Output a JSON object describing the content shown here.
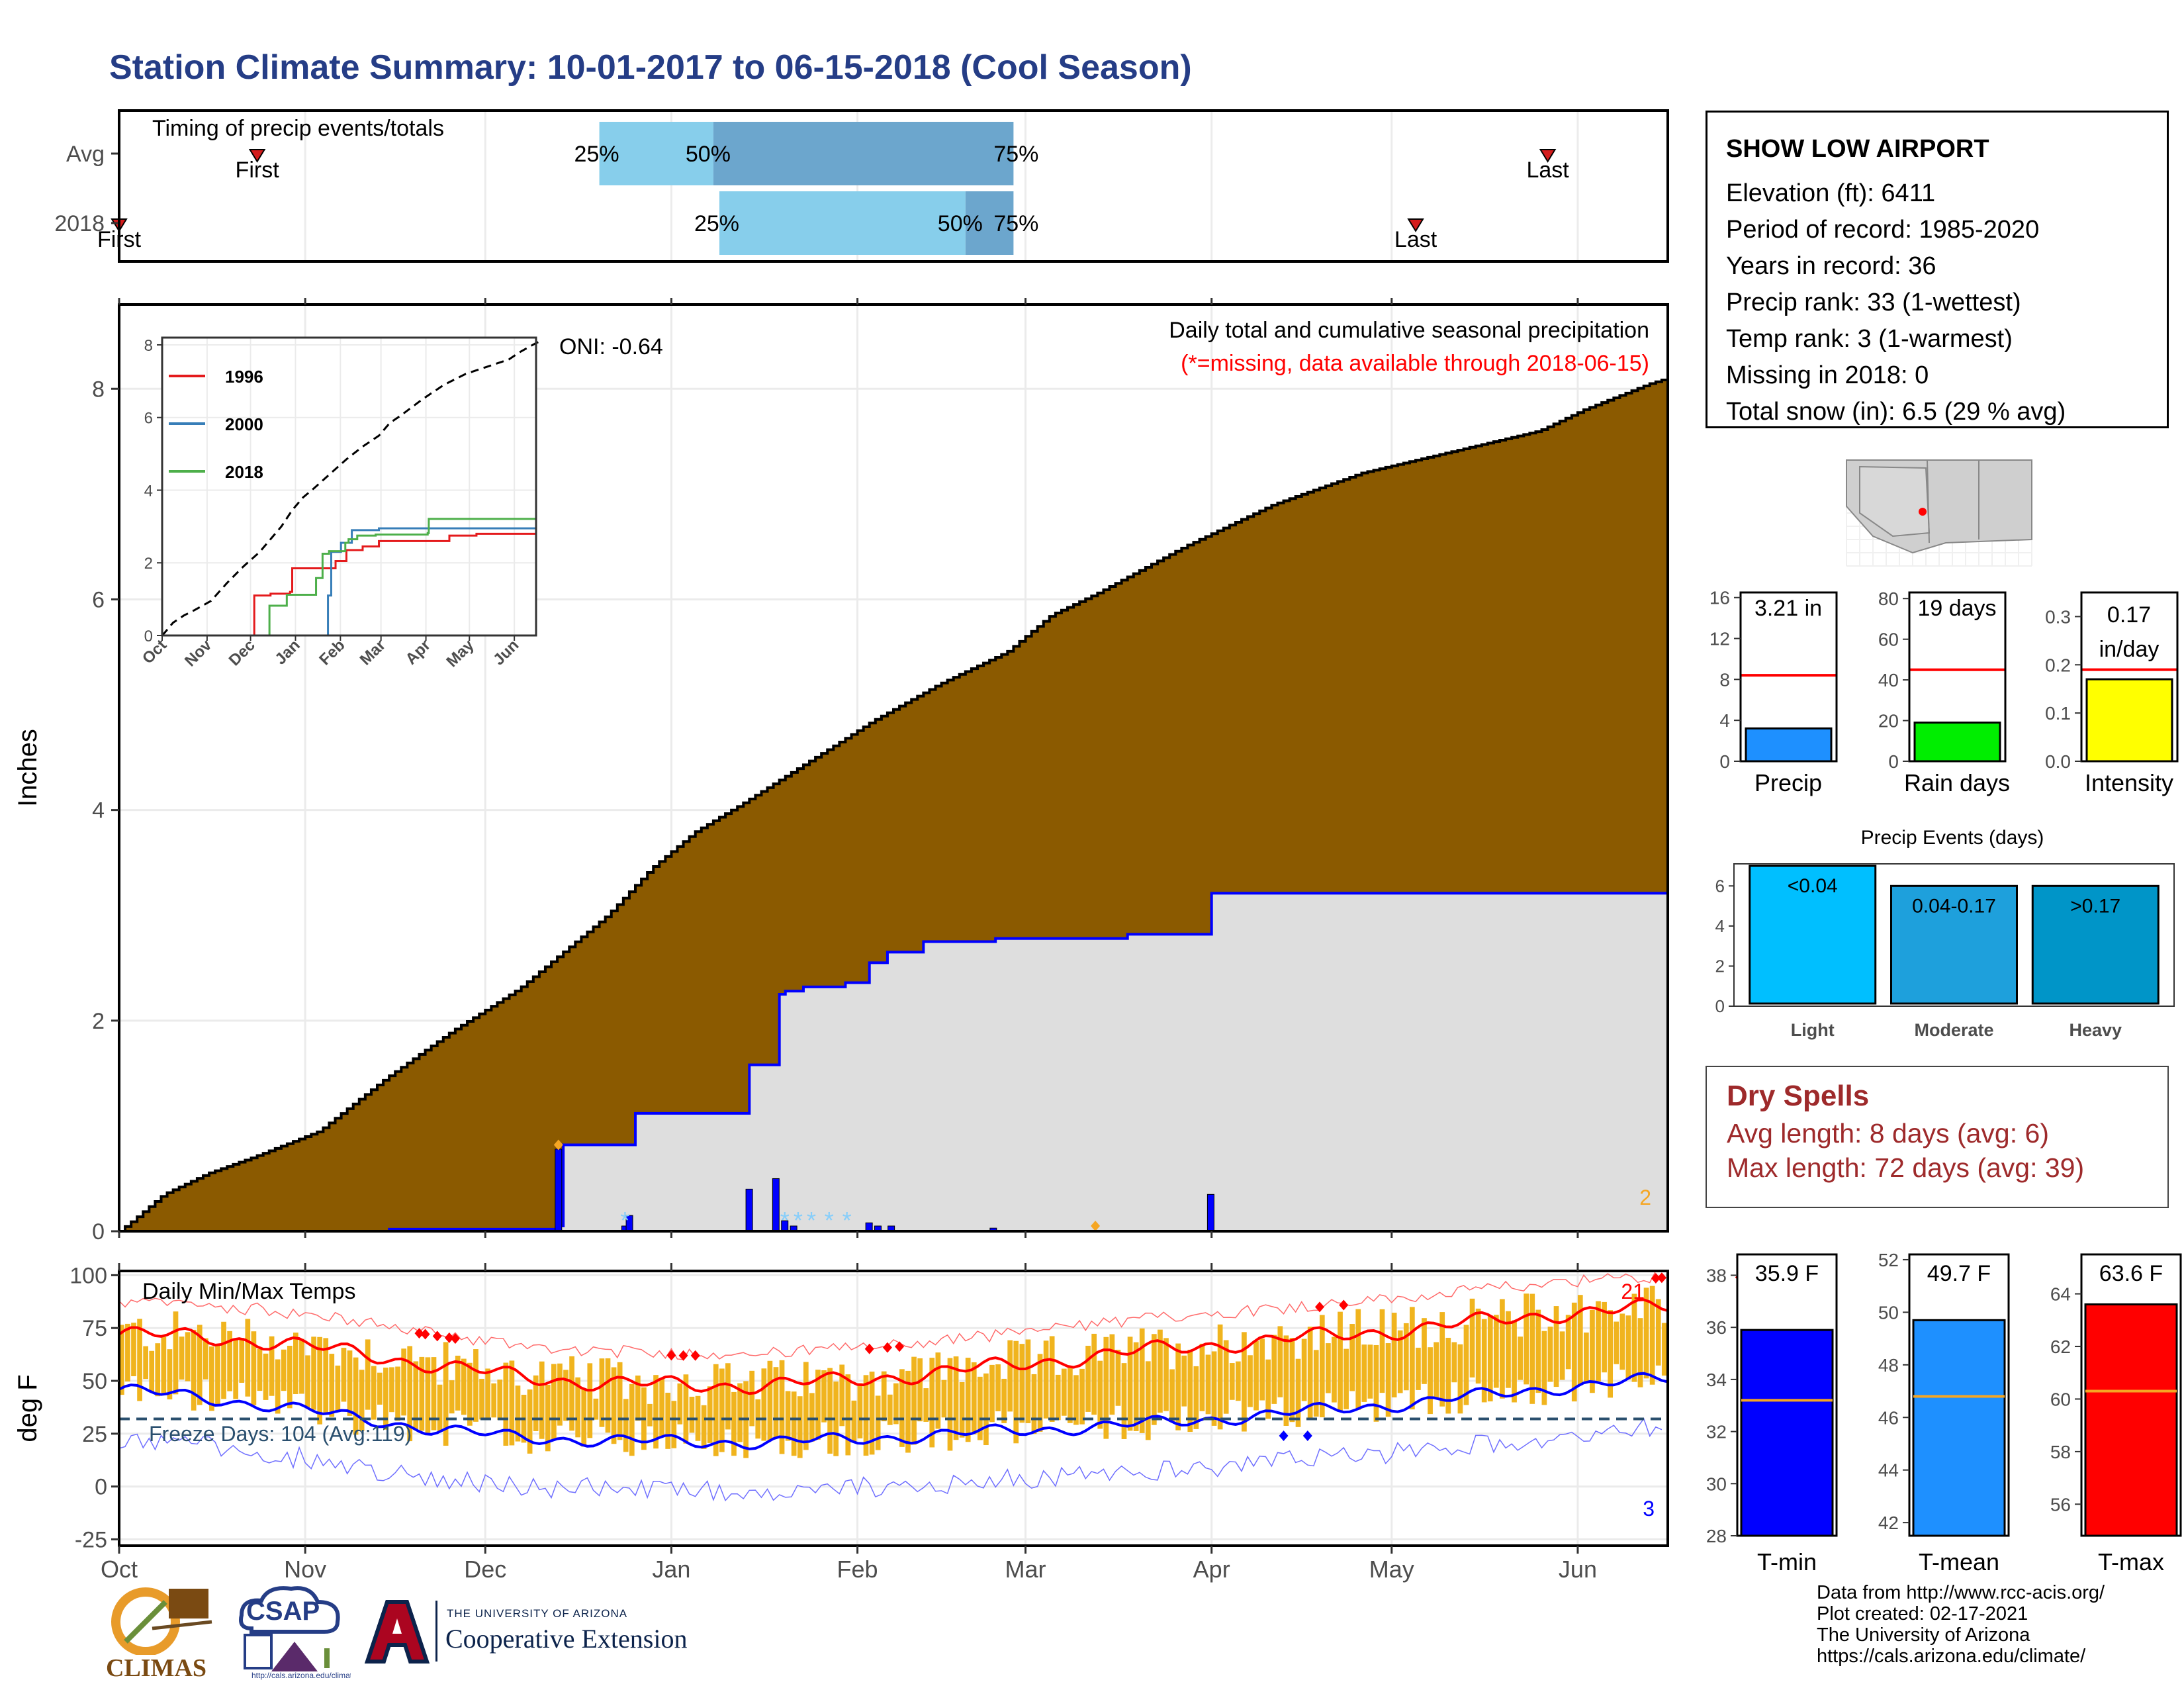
{
  "title": "Station Climate Summary: 10-01-2017 to 06-15-2018 (Cool Season)",
  "colors": {
    "title": "#253d86",
    "cum_fill": "#8b5a00",
    "cur_fill": "#dedede",
    "cur_line": "#0000ff",
    "temp_bar": "#f0b41e",
    "tmax_line": "#ff0000",
    "tmin_line": "#0000ff",
    "light": "#00bfff",
    "moderate": "#1ea0dc",
    "heavy": "#0095c8",
    "dry": "#9e2a2b"
  },
  "station": {
    "name": "SHOW LOW AIRPORT",
    "lines": [
      "Elevation (ft): 6411",
      "Period of record: 1985-2020",
      "Years in record: 36",
      "Precip rank: 33 (1-wettest)",
      "Temp rank: 3 (1-warmest)",
      "Missing in 2018: 0",
      "Total snow (in): 6.5 (29 % avg)"
    ]
  },
  "dry_spells": {
    "title": "Dry Spells",
    "avg": "Avg length: 8 days (avg: 6)",
    "max": "Max length: 72 days (avg: 39)"
  },
  "credits": [
    "Data from http://www.rcc-acis.org/",
    "Plot created: 02-17-2021",
    "The University of Arizona",
    "https://cals.arizona.edu/climate/"
  ],
  "logos": {
    "climas": "CLIMAS",
    "csap": "CSAP",
    "csap_url": "http://cals.arizona.edu/climate",
    "ua_small": "THE UNIVERSITY OF ARIZONA",
    "ua_big": "Cooperative Extension"
  },
  "chart_data": [
    {
      "id": "timing",
      "type": "bar",
      "title": "Timing of precip events/totals",
      "rows": [
        {
          "label": "Avg",
          "first": "Oct 24",
          "p25": "Dec 20",
          "p50": "Jan 8",
          "p75": "Feb 27",
          "last": "May 27"
        },
        {
          "label": "2018",
          "first": "Oct 1",
          "p25": "Jan 9",
          "p50": "Feb 19",
          "p75": "Feb 27",
          "last": "May 5"
        }
      ],
      "labels": {
        "first": "First",
        "last": "Last",
        "p25": "25%",
        "p50": "50%",
        "p75": "75%"
      }
    },
    {
      "id": "precip",
      "type": "area",
      "ylabel": "Inches",
      "annotation": "Daily total and cumulative seasonal precipitation",
      "missing_note": "(*=missing, data available through 2018-06-15)",
      "oni": "ONI: -0.64",
      "corner_count": "2",
      "ylim": [
        0,
        8.8
      ],
      "yticks": [
        0,
        2,
        4,
        6,
        8
      ],
      "xticks": [
        "Oct",
        "Nov",
        "Dec",
        "Jan",
        "Feb",
        "Mar",
        "Apr",
        "May",
        "Jun"
      ],
      "cum_avg": [
        [
          0,
          0
        ],
        [
          3,
          0.1
        ],
        [
          10,
          0.35
        ],
        [
          20,
          0.55
        ],
        [
          30,
          0.7
        ],
        [
          45,
          0.95
        ],
        [
          60,
          1.45
        ],
        [
          75,
          1.9
        ],
        [
          90,
          2.3
        ],
        [
          100,
          2.65
        ],
        [
          110,
          3.0
        ],
        [
          120,
          3.45
        ],
        [
          130,
          3.8
        ],
        [
          140,
          4.05
        ],
        [
          155,
          4.45
        ],
        [
          170,
          4.85
        ],
        [
          185,
          5.2
        ],
        [
          200,
          5.5
        ],
        [
          210,
          5.85
        ],
        [
          220,
          6.05
        ],
        [
          240,
          6.5
        ],
        [
          260,
          6.9
        ],
        [
          280,
          7.2
        ],
        [
          300,
          7.4
        ],
        [
          320,
          7.6
        ],
        [
          330,
          7.8
        ],
        [
          345,
          8.05
        ],
        [
          349,
          8.1
        ]
      ],
      "cum_2018": [
        [
          0,
          0
        ],
        [
          30,
          0
        ],
        [
          60,
          0.02
        ],
        [
          98,
          0.05
        ],
        [
          99,
          0.82
        ],
        [
          114,
          0.82
        ],
        [
          115,
          1.12
        ],
        [
          141,
          1.12
        ],
        [
          142,
          1.58
        ],
        [
          147,
          1.58
        ],
        [
          148,
          2.25
        ],
        [
          150,
          2.28
        ],
        [
          154,
          2.32
        ],
        [
          163,
          2.36
        ],
        [
          169,
          2.55
        ],
        [
          172,
          2.65
        ],
        [
          180,
          2.75
        ],
        [
          197,
          2.78
        ],
        [
          227,
          2.82
        ],
        [
          245,
          2.82
        ],
        [
          246,
          3.21
        ],
        [
          349,
          3.21
        ]
      ],
      "daily_bars": [
        [
          99,
          0.78
        ],
        [
          114,
          0.05
        ],
        [
          115,
          0.15
        ],
        [
          142,
          0.4
        ],
        [
          148,
          0.5
        ],
        [
          150,
          0.1
        ],
        [
          152,
          0.05
        ],
        [
          169,
          0.08
        ],
        [
          171,
          0.05
        ],
        [
          174,
          0.05
        ],
        [
          197,
          0.03
        ],
        [
          246,
          0.35
        ]
      ],
      "snow_marks": [
        114,
        150,
        153,
        156,
        160,
        164
      ],
      "inset": {
        "type": "line",
        "ylim": [
          0,
          8
        ],
        "yticks": [
          0,
          2,
          4,
          6,
          8
        ],
        "xticks": [
          "Oct",
          "Nov",
          "Dec",
          "Jan",
          "Feb",
          "Mar",
          "Apr",
          "May",
          "Jun"
        ],
        "series": [
          {
            "name": "1996",
            "color": "#e41a1c",
            "values": [
              [
                0,
                0
              ],
              [
                80,
                0
              ],
              [
                85,
                1.1
              ],
              [
                100,
                1.15
              ],
              [
                118,
                1.2
              ],
              [
                120,
                1.85
              ],
              [
                145,
                1.85
              ],
              [
                160,
                2.05
              ],
              [
                170,
                2.35
              ],
              [
                185,
                2.45
              ],
              [
                200,
                2.6
              ],
              [
                265,
                2.75
              ],
              [
                290,
                2.8
              ],
              [
                345,
                2.8
              ]
            ]
          },
          {
            "name": "2000",
            "color": "#377eb8",
            "values": [
              [
                0,
                0
              ],
              [
                150,
                0
              ],
              [
                153,
                1.1
              ],
              [
                156,
                2.3
              ],
              [
                165,
                2.55
              ],
              [
                175,
                2.9
              ],
              [
                200,
                2.95
              ],
              [
                345,
                2.95
              ]
            ]
          },
          {
            "name": "2018",
            "color": "#4daf4a",
            "values": [
              [
                0,
                0
              ],
              [
                98,
                0
              ],
              [
                99,
                0.82
              ],
              [
                115,
                1.12
              ],
              [
                142,
                1.58
              ],
              [
                148,
                2.25
              ],
              [
                154,
                2.32
              ],
              [
                169,
                2.55
              ],
              [
                172,
                2.65
              ],
              [
                180,
                2.75
              ],
              [
                197,
                2.78
              ],
              [
                245,
                2.82
              ],
              [
                246,
                3.21
              ],
              [
                345,
                3.21
              ]
            ]
          }
        ]
      }
    },
    {
      "id": "temps",
      "type": "bar",
      "title": "Daily Min/Max Temps",
      "ylabel": "deg F",
      "ylim": [
        -28,
        102
      ],
      "yticks": [
        -25,
        0,
        25,
        50,
        75,
        100
      ],
      "xticks": [
        "Oct",
        "Nov",
        "Dec",
        "Jan",
        "Feb",
        "Mar",
        "Apr",
        "May",
        "Jun"
      ],
      "freeze_text": "Freeze Days: 104 (Avg:119)",
      "freeze_line": 32,
      "max_records": "21",
      "min_records": "3",
      "avg_tmax": [
        [
          0,
          72
        ],
        [
          15,
          71
        ],
        [
          30,
          68
        ],
        [
          45,
          63
        ],
        [
          60,
          57
        ],
        [
          75,
          52
        ],
        [
          90,
          49
        ],
        [
          105,
          48
        ],
        [
          120,
          48
        ],
        [
          135,
          50
        ],
        [
          150,
          53
        ],
        [
          165,
          57
        ],
        [
          180,
          61
        ],
        [
          195,
          65
        ],
        [
          210,
          68
        ],
        [
          225,
          71
        ],
        [
          240,
          74
        ],
        [
          255,
          78
        ],
        [
          270,
          82
        ],
        [
          285,
          84
        ],
        [
          290,
          85
        ]
      ],
      "avg_tmin": [
        [
          0,
          46
        ],
        [
          15,
          42
        ],
        [
          30,
          38
        ],
        [
          45,
          32
        ],
        [
          60,
          27
        ],
        [
          75,
          23
        ],
        [
          90,
          22
        ],
        [
          105,
          21
        ],
        [
          120,
          21
        ],
        [
          135,
          22
        ],
        [
          150,
          24
        ],
        [
          165,
          26
        ],
        [
          180,
          28
        ],
        [
          195,
          30
        ],
        [
          210,
          33
        ],
        [
          225,
          36
        ],
        [
          240,
          39
        ],
        [
          255,
          43
        ],
        [
          270,
          47
        ],
        [
          285,
          50
        ],
        [
          290,
          51
        ]
      ]
    },
    {
      "id": "tot_precip",
      "type": "bar",
      "value_label": "3.21 in",
      "category": "Precip",
      "value": 3.21,
      "avg": 8.4,
      "ylim": [
        0,
        16.5
      ],
      "yticks": [
        0,
        4,
        8,
        12,
        16
      ]
    },
    {
      "id": "rain_days",
      "type": "bar",
      "value_label": "19 days",
      "category": "Rain days",
      "value": 19,
      "avg": 45,
      "ylim": [
        0,
        83
      ],
      "yticks": [
        0,
        20,
        40,
        60,
        80
      ]
    },
    {
      "id": "intensity",
      "type": "bar",
      "value_label": "0.17",
      "value_unit": "in/day",
      "category": "Intensity",
      "value": 0.17,
      "avg": 0.19,
      "ylim": [
        0,
        0.35
      ],
      "yticks": [
        0.0,
        0.1,
        0.2,
        0.3
      ]
    },
    {
      "id": "events",
      "type": "bar",
      "title": "Precip Events (days)",
      "categories": [
        "Light",
        "Moderate",
        "Heavy"
      ],
      "value_labels": [
        "<0.04",
        "0.04-0.17",
        ">0.17"
      ],
      "values": [
        7,
        6,
        6
      ],
      "ylim": [
        0,
        7.1
      ],
      "yticks": [
        0,
        2,
        4,
        6
      ]
    },
    {
      "id": "tmin_bar",
      "type": "bar",
      "value_label": "35.9 F",
      "category": "T-min",
      "value": 35.9,
      "avg": 33.2,
      "ylim": [
        28,
        38.8
      ],
      "yticks": [
        28,
        30,
        32,
        34,
        36,
        38
      ]
    },
    {
      "id": "tmean_bar",
      "type": "bar",
      "value_label": "49.7 F",
      "category": "T-mean",
      "value": 49.7,
      "avg": 46.8,
      "ylim": [
        41.5,
        52.2
      ],
      "yticks": [
        42,
        44,
        46,
        48,
        50,
        52
      ]
    },
    {
      "id": "tmax_bar",
      "type": "bar",
      "value_label": "63.6 F",
      "category": "T-max",
      "value": 63.6,
      "avg": 60.3,
      "ylim": [
        54.8,
        65.5
      ],
      "yticks": [
        56,
        58,
        60,
        62,
        64
      ]
    }
  ]
}
